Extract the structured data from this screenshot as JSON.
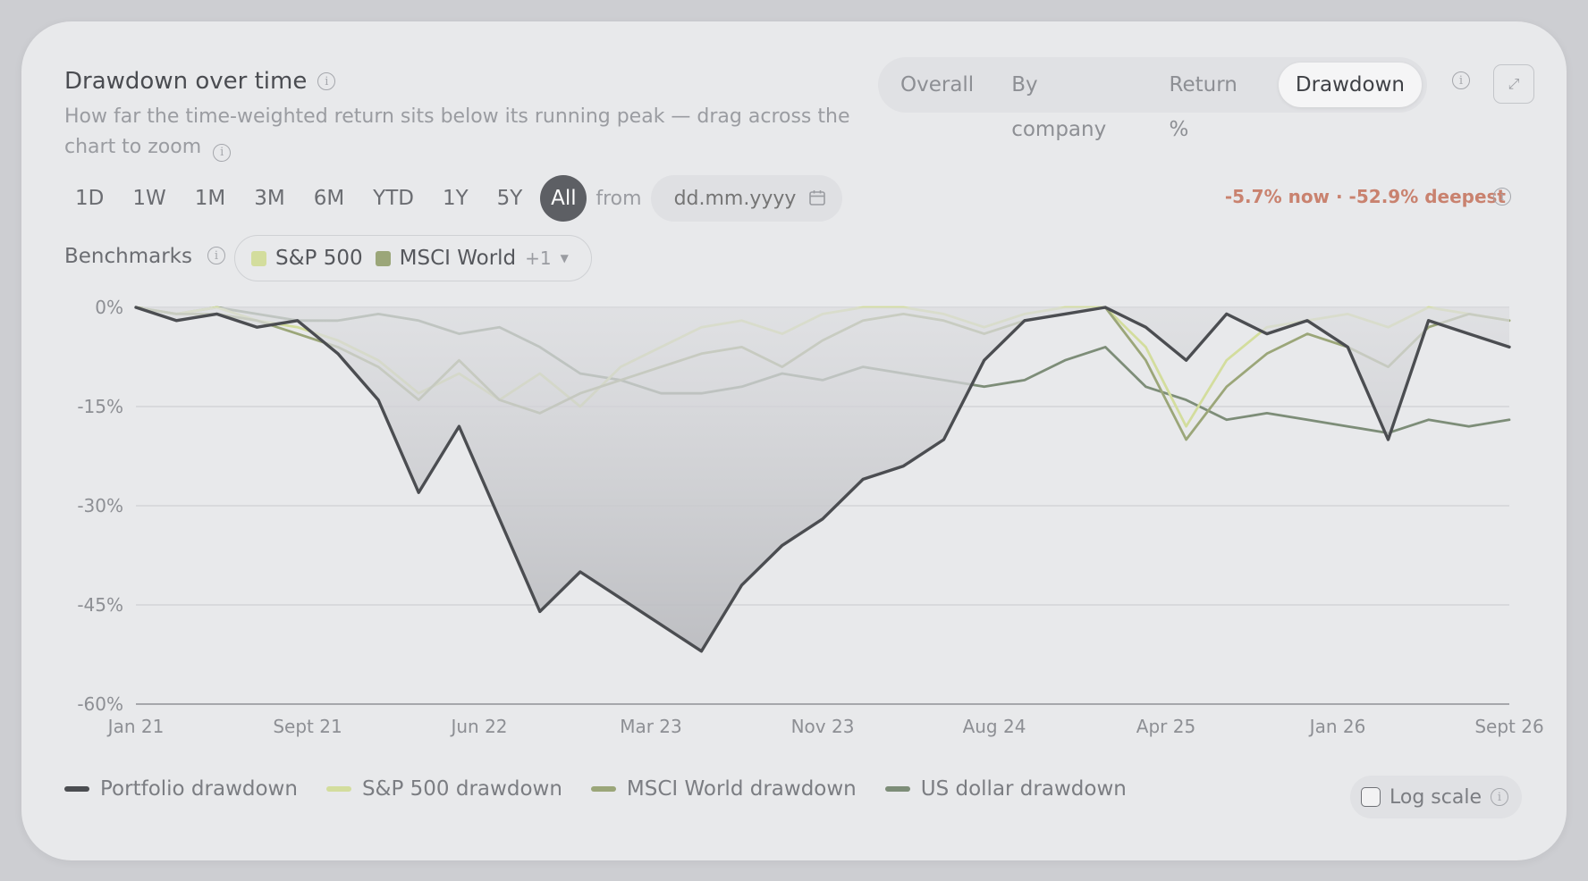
{
  "header": {
    "title": "Drawdown over time",
    "subtitle": "How far the time-weighted return sits below its running peak — drag across the chart to zoom"
  },
  "views": [
    {
      "label": "Overall",
      "active": false
    },
    {
      "label": "By company",
      "active": false
    },
    {
      "label": "Return %",
      "active": false
    },
    {
      "label": "Drawdown",
      "active": true
    }
  ],
  "ranges": [
    {
      "label": "1D",
      "active": false
    },
    {
      "label": "1W",
      "active": false
    },
    {
      "label": "1M",
      "active": false
    },
    {
      "label": "3M",
      "active": false
    },
    {
      "label": "6M",
      "active": false
    },
    {
      "label": "YTD",
      "active": false
    },
    {
      "label": "1Y",
      "active": false
    },
    {
      "label": "5Y",
      "active": false
    },
    {
      "label": "All",
      "active": true
    }
  ],
  "from_label": "from",
  "date_placeholder": "dd.mm.yyyy",
  "drawdown_stat": "-5.7% now · -52.9% deepest",
  "benchmarks": {
    "label": "Benchmarks",
    "items": [
      {
        "name": "S&P 500",
        "color": "#d3dd9d"
      },
      {
        "name": "MSCI World",
        "color": "#9ba679"
      }
    ],
    "more": "+1"
  },
  "log_scale_label": "Log scale",
  "log_scale_checked": false,
  "chart_data": {
    "type": "line",
    "xlabel": "",
    "ylabel": "",
    "x_tick_labels": [
      "Jan 21",
      "Sept 21",
      "Jun 22",
      "Mar 23",
      "Nov 23",
      "Aug 24",
      "Apr 25",
      "Jan 26",
      "Sept 26"
    ],
    "y_ticks": [
      0,
      -15,
      -30,
      -45,
      -60
    ],
    "y_tick_labels": [
      "0%",
      "-15%",
      "-30%",
      "-45%",
      "-60%"
    ],
    "ylim": [
      -60,
      0
    ],
    "x_range": [
      "2021-01",
      "2026-09"
    ],
    "grid": true,
    "legend_position": "bottom-left",
    "x": [
      "2021-01",
      "2021-03",
      "2021-05",
      "2021-07",
      "2021-09",
      "2021-11",
      "2022-01",
      "2022-03",
      "2022-05",
      "2022-07",
      "2022-09",
      "2022-11",
      "2023-01",
      "2023-03",
      "2023-05",
      "2023-07",
      "2023-09",
      "2023-11",
      "2024-01",
      "2024-03",
      "2024-05",
      "2024-07",
      "2024-09",
      "2024-11",
      "2025-01",
      "2025-03",
      "2025-05",
      "2025-07",
      "2025-09",
      "2025-11",
      "2026-01",
      "2026-03",
      "2026-05",
      "2026-07",
      "2026-09"
    ],
    "series": [
      {
        "name": "Portfolio drawdown",
        "color": "#4b4d51",
        "fill": true,
        "values": [
          0,
          -2,
          -1,
          -3,
          -2,
          -7,
          -14,
          -28,
          -18,
          -32,
          -46,
          -40,
          -44,
          -48,
          -52,
          -42,
          -36,
          -32,
          -26,
          -24,
          -20,
          -8,
          -2,
          -1,
          0,
          -3,
          -8,
          -1,
          -4,
          -2,
          -6,
          -20,
          -2,
          -4,
          -6
        ]
      },
      {
        "name": "S&P 500 drawdown",
        "color": "#d3dd9d",
        "values": [
          0,
          -1,
          0,
          -2,
          -3,
          -5,
          -8,
          -13,
          -10,
          -14,
          -10,
          -15,
          -9,
          -6,
          -3,
          -2,
          -4,
          -1,
          0,
          0,
          -1,
          -3,
          -1,
          0,
          0,
          -6,
          -18,
          -8,
          -3,
          -2,
          -1,
          -3,
          0,
          -1,
          -2
        ]
      },
      {
        "name": "MSCI World drawdown",
        "color": "#9ba679",
        "values": [
          0,
          -1,
          -1,
          -2,
          -4,
          -6,
          -9,
          -14,
          -8,
          -14,
          -16,
          -13,
          -11,
          -9,
          -7,
          -6,
          -9,
          -5,
          -2,
          -1,
          -2,
          -4,
          -2,
          -1,
          0,
          -8,
          -20,
          -12,
          -7,
          -4,
          -6,
          -9,
          -3,
          -1,
          -2
        ]
      },
      {
        "name": "US dollar drawdown",
        "color": "#7d8d78",
        "values": [
          0,
          -1,
          0,
          -1,
          -2,
          -2,
          -1,
          -2,
          -4,
          -3,
          -6,
          -10,
          -11,
          -13,
          -13,
          -12,
          -10,
          -11,
          -9,
          -10,
          -11,
          -12,
          -11,
          -8,
          -6,
          -12,
          -14,
          -17,
          -16,
          -17,
          -18,
          -19,
          -17,
          -18,
          -17
        ]
      }
    ]
  }
}
